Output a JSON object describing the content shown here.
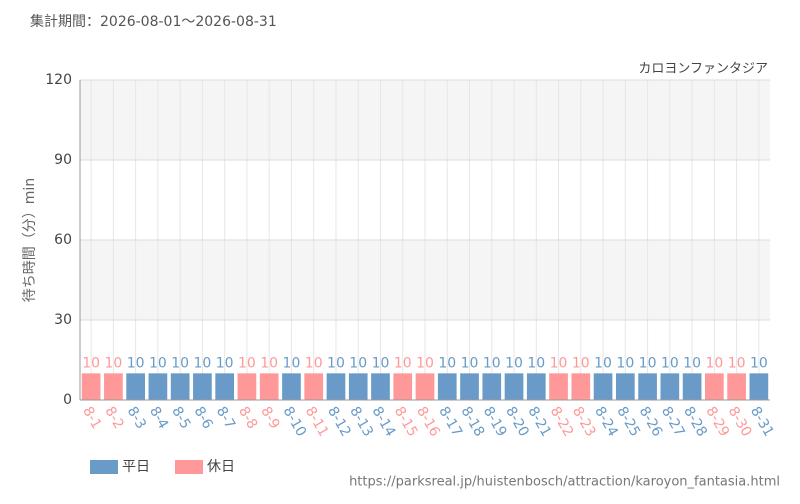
{
  "chart_data": {
    "type": "bar",
    "title": "集計期間：2026-08-01～2026-08-31",
    "subtitle": "カロヨンファンタジア",
    "y_label": "待ち時間（分）min",
    "source": "https://parksreal.jp/huistenbosch/attraction/karoyon_fantasia.html",
    "categories": [
      "8-1",
      "8-2",
      "8-3",
      "8-4",
      "8-5",
      "8-6",
      "8-7",
      "8-8",
      "8-9",
      "8-10",
      "8-11",
      "8-12",
      "8-13",
      "8-14",
      "8-15",
      "8-16",
      "8-17",
      "8-18",
      "8-19",
      "8-20",
      "8-21",
      "8-22",
      "8-23",
      "8-24",
      "8-25",
      "8-26",
      "8-27",
      "8-28",
      "8-29",
      "8-30",
      "8-31"
    ],
    "series": [
      {
        "name": "平日",
        "color": "#6a9bc8",
        "values": [
          null,
          null,
          10,
          10,
          10,
          10,
          10,
          null,
          null,
          10,
          null,
          10,
          10,
          10,
          null,
          null,
          10,
          10,
          10,
          10,
          10,
          null,
          null,
          10,
          10,
          10,
          10,
          10,
          null,
          null,
          10
        ]
      },
      {
        "name": "休日",
        "color": "#ff9999",
        "values": [
          10,
          10,
          null,
          null,
          null,
          null,
          null,
          10,
          10,
          null,
          10,
          null,
          null,
          null,
          10,
          10,
          null,
          null,
          null,
          null,
          null,
          10,
          10,
          null,
          null,
          null,
          null,
          null,
          10,
          10,
          null
        ]
      }
    ],
    "ylim": [
      0,
      120
    ],
    "yticks": [
      0,
      30,
      60,
      90,
      120
    ],
    "grid": true
  }
}
